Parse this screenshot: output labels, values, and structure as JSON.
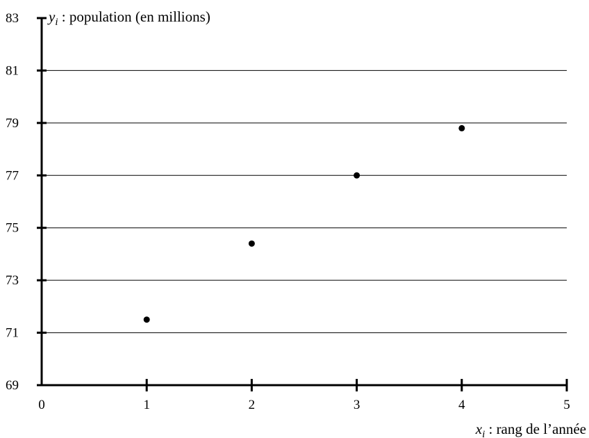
{
  "chart_data": {
    "type": "scatter",
    "title": "",
    "xlabel": {
      "var": "x",
      "sub": "i",
      "text": " : rang de l’année"
    },
    "ylabel": {
      "var": "y",
      "sub": "i",
      "text": " : population (en millions)"
    },
    "xlim": [
      0,
      5
    ],
    "ylim": [
      69,
      83
    ],
    "x_ticks": [
      0,
      1,
      2,
      3,
      4,
      5
    ],
    "y_ticks": [
      69,
      71,
      73,
      75,
      77,
      79,
      81,
      83
    ],
    "grid": "horizontal",
    "points": [
      {
        "x": 1,
        "y": 71.5
      },
      {
        "x": 2,
        "y": 74.4
      },
      {
        "x": 3,
        "y": 77.0
      },
      {
        "x": 4,
        "y": 78.8
      }
    ]
  }
}
